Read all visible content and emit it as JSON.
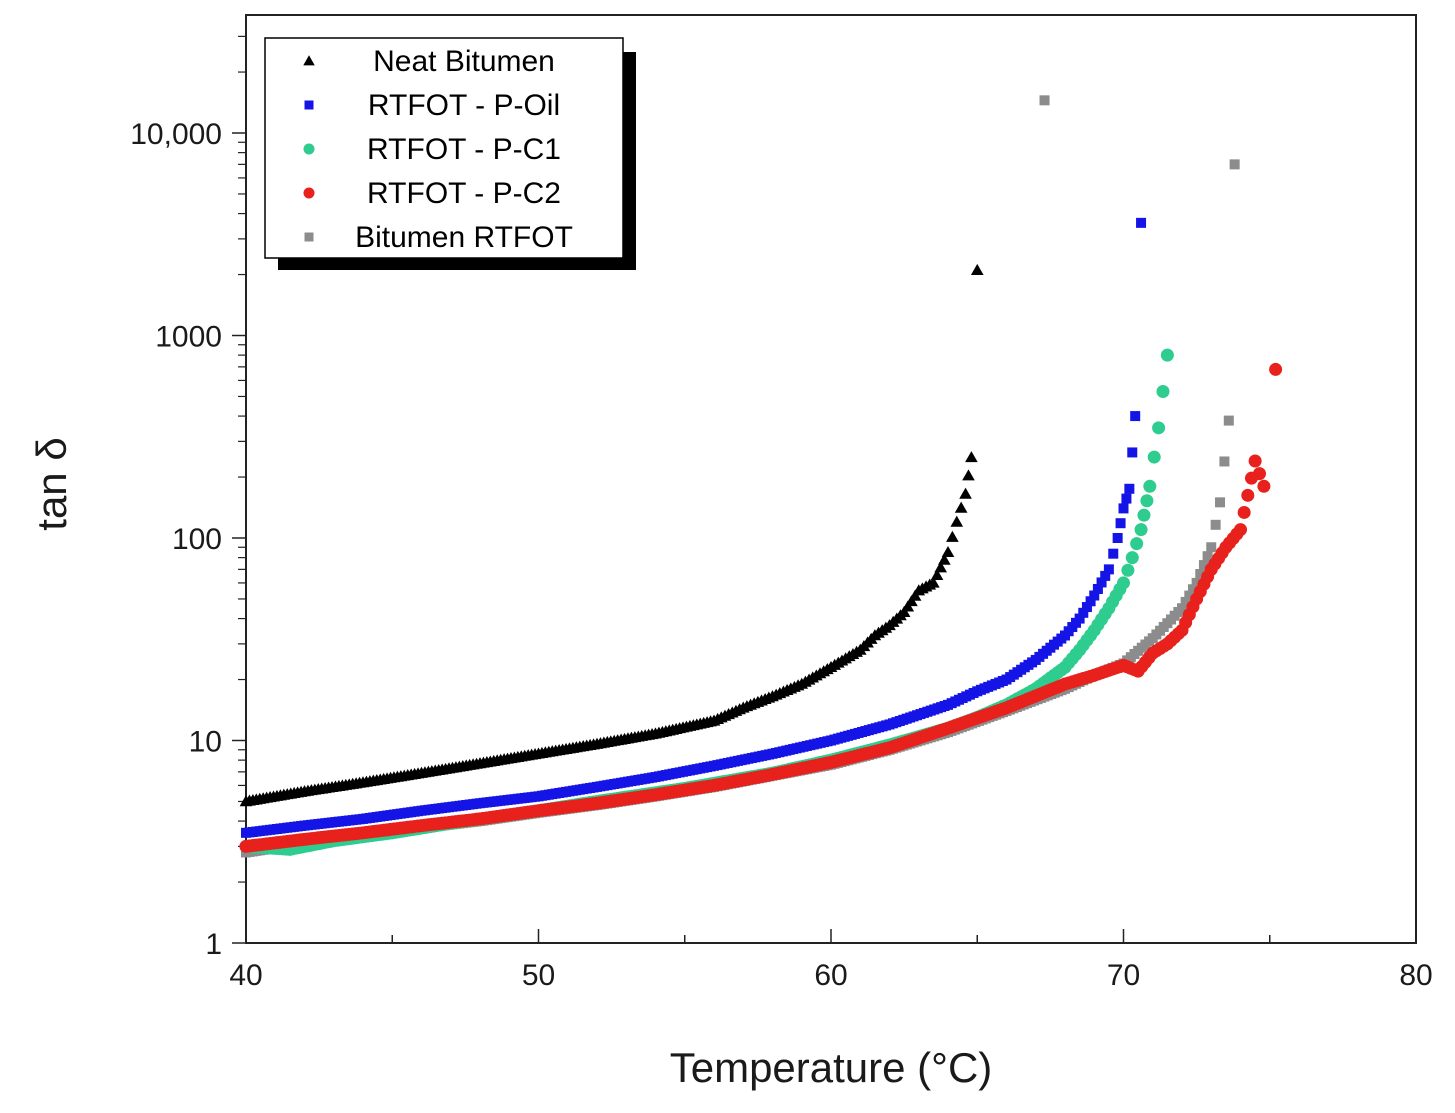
{
  "chart_data": {
    "type": "scatter",
    "title": "",
    "xlabel": "Temperature (°C)",
    "ylabel": "tan δ",
    "xlim": [
      40,
      80
    ],
    "ylim": [
      1,
      40000
    ],
    "yscale": "log",
    "xticks": [
      40,
      50,
      60,
      70,
      80
    ],
    "xtick_labels": [
      "40",
      "50",
      "60",
      "70",
      "80"
    ],
    "yticks": [
      1,
      10,
      100,
      1000,
      10000
    ],
    "ytick_labels": [
      "1",
      "10",
      "100",
      "1000",
      "10,000"
    ],
    "grid": false,
    "legend_position": "top-left",
    "series": [
      {
        "name": "Neat Bitumen",
        "color": "#000000",
        "marker": "triangle",
        "x": [
          40,
          42,
          44,
          46,
          48,
          50,
          52,
          54,
          56,
          57,
          58,
          59,
          60,
          61,
          61.5,
          62,
          62.5,
          63,
          63.5,
          64,
          64.3,
          64.6,
          64.8,
          65
        ],
        "y": [
          5.0,
          5.6,
          6.2,
          6.9,
          7.7,
          8.6,
          9.6,
          10.8,
          12.5,
          14.5,
          16.5,
          19.0,
          23.0,
          28.0,
          33.0,
          37.0,
          43.0,
          55.0,
          60.0,
          85.0,
          120.0,
          165.0,
          250.0,
          2100.0
        ]
      },
      {
        "name": "RTFOT - P-Oil",
        "color": "#1414e6",
        "marker": "square",
        "x": [
          40,
          42,
          44,
          46,
          48,
          50,
          52,
          54,
          56,
          58,
          60,
          62,
          64,
          65,
          66,
          67,
          68,
          68.5,
          69,
          69.5,
          69.8,
          70,
          70.2,
          70.4,
          70.6
        ],
        "y": [
          3.5,
          3.8,
          4.1,
          4.5,
          4.9,
          5.3,
          5.9,
          6.6,
          7.5,
          8.6,
          10.0,
          12.0,
          15.0,
          17.5,
          20.0,
          25.0,
          33.0,
          40.0,
          52.0,
          70.0,
          100.0,
          140.0,
          175.0,
          400.0,
          3600.0
        ]
      },
      {
        "name": "RTFOT - P-C1",
        "color": "#2ecc8f",
        "marker": "circle",
        "x": [
          40,
          41.5,
          43,
          45,
          47,
          50,
          52,
          55,
          58,
          60,
          62,
          64,
          65,
          66,
          67,
          68,
          68.5,
          69,
          69.5,
          70,
          70.3,
          70.6,
          70.9,
          71.2,
          71.5
        ],
        "y": [
          3.0,
          2.9,
          3.2,
          3.5,
          3.9,
          4.5,
          5.0,
          5.8,
          6.9,
          8.0,
          9.5,
          11.5,
          13.0,
          15.0,
          18.0,
          23.0,
          28.0,
          35.0,
          45.0,
          60.0,
          80.0,
          110.0,
          180.0,
          350.0,
          800.0
        ]
      },
      {
        "name": "RTFOT - P-C2",
        "color": "#e8211c",
        "marker": "circle",
        "x": [
          40,
          42,
          44,
          46,
          48,
          50,
          52,
          54,
          56,
          58,
          60,
          62,
          64,
          66,
          68,
          69,
          70,
          70.5,
          71,
          71.5,
          72,
          72.5,
          73,
          73.5,
          74,
          74.5,
          74.8,
          75.2
        ],
        "y": [
          3.0,
          3.25,
          3.5,
          3.8,
          4.1,
          4.5,
          4.9,
          5.4,
          6.0,
          6.8,
          7.8,
          9.2,
          11.5,
          14.5,
          19.0,
          21.0,
          23.5,
          22.0,
          27.0,
          30.0,
          35.0,
          50.0,
          70.0,
          90.0,
          110.0,
          240.0,
          180.0,
          680.0
        ]
      },
      {
        "name": "Bitumen RTFOT",
        "color": "#8c8c8c",
        "marker": "square",
        "x": [
          40,
          42,
          44,
          46,
          48,
          50,
          52,
          54,
          56,
          58,
          60,
          62,
          64,
          66,
          68,
          69,
          70,
          71,
          72,
          72.5,
          73,
          73.3,
          73.6,
          73.8,
          67.3
        ],
        "y": [
          2.8,
          3.1,
          3.4,
          3.7,
          4.0,
          4.4,
          4.8,
          5.3,
          5.9,
          6.7,
          7.6,
          9.0,
          11.0,
          14.0,
          18.0,
          21.0,
          24.0,
          32.0,
          45.0,
          60.0,
          90.0,
          150.0,
          380.0,
          7000.0,
          14500.0
        ]
      }
    ]
  }
}
